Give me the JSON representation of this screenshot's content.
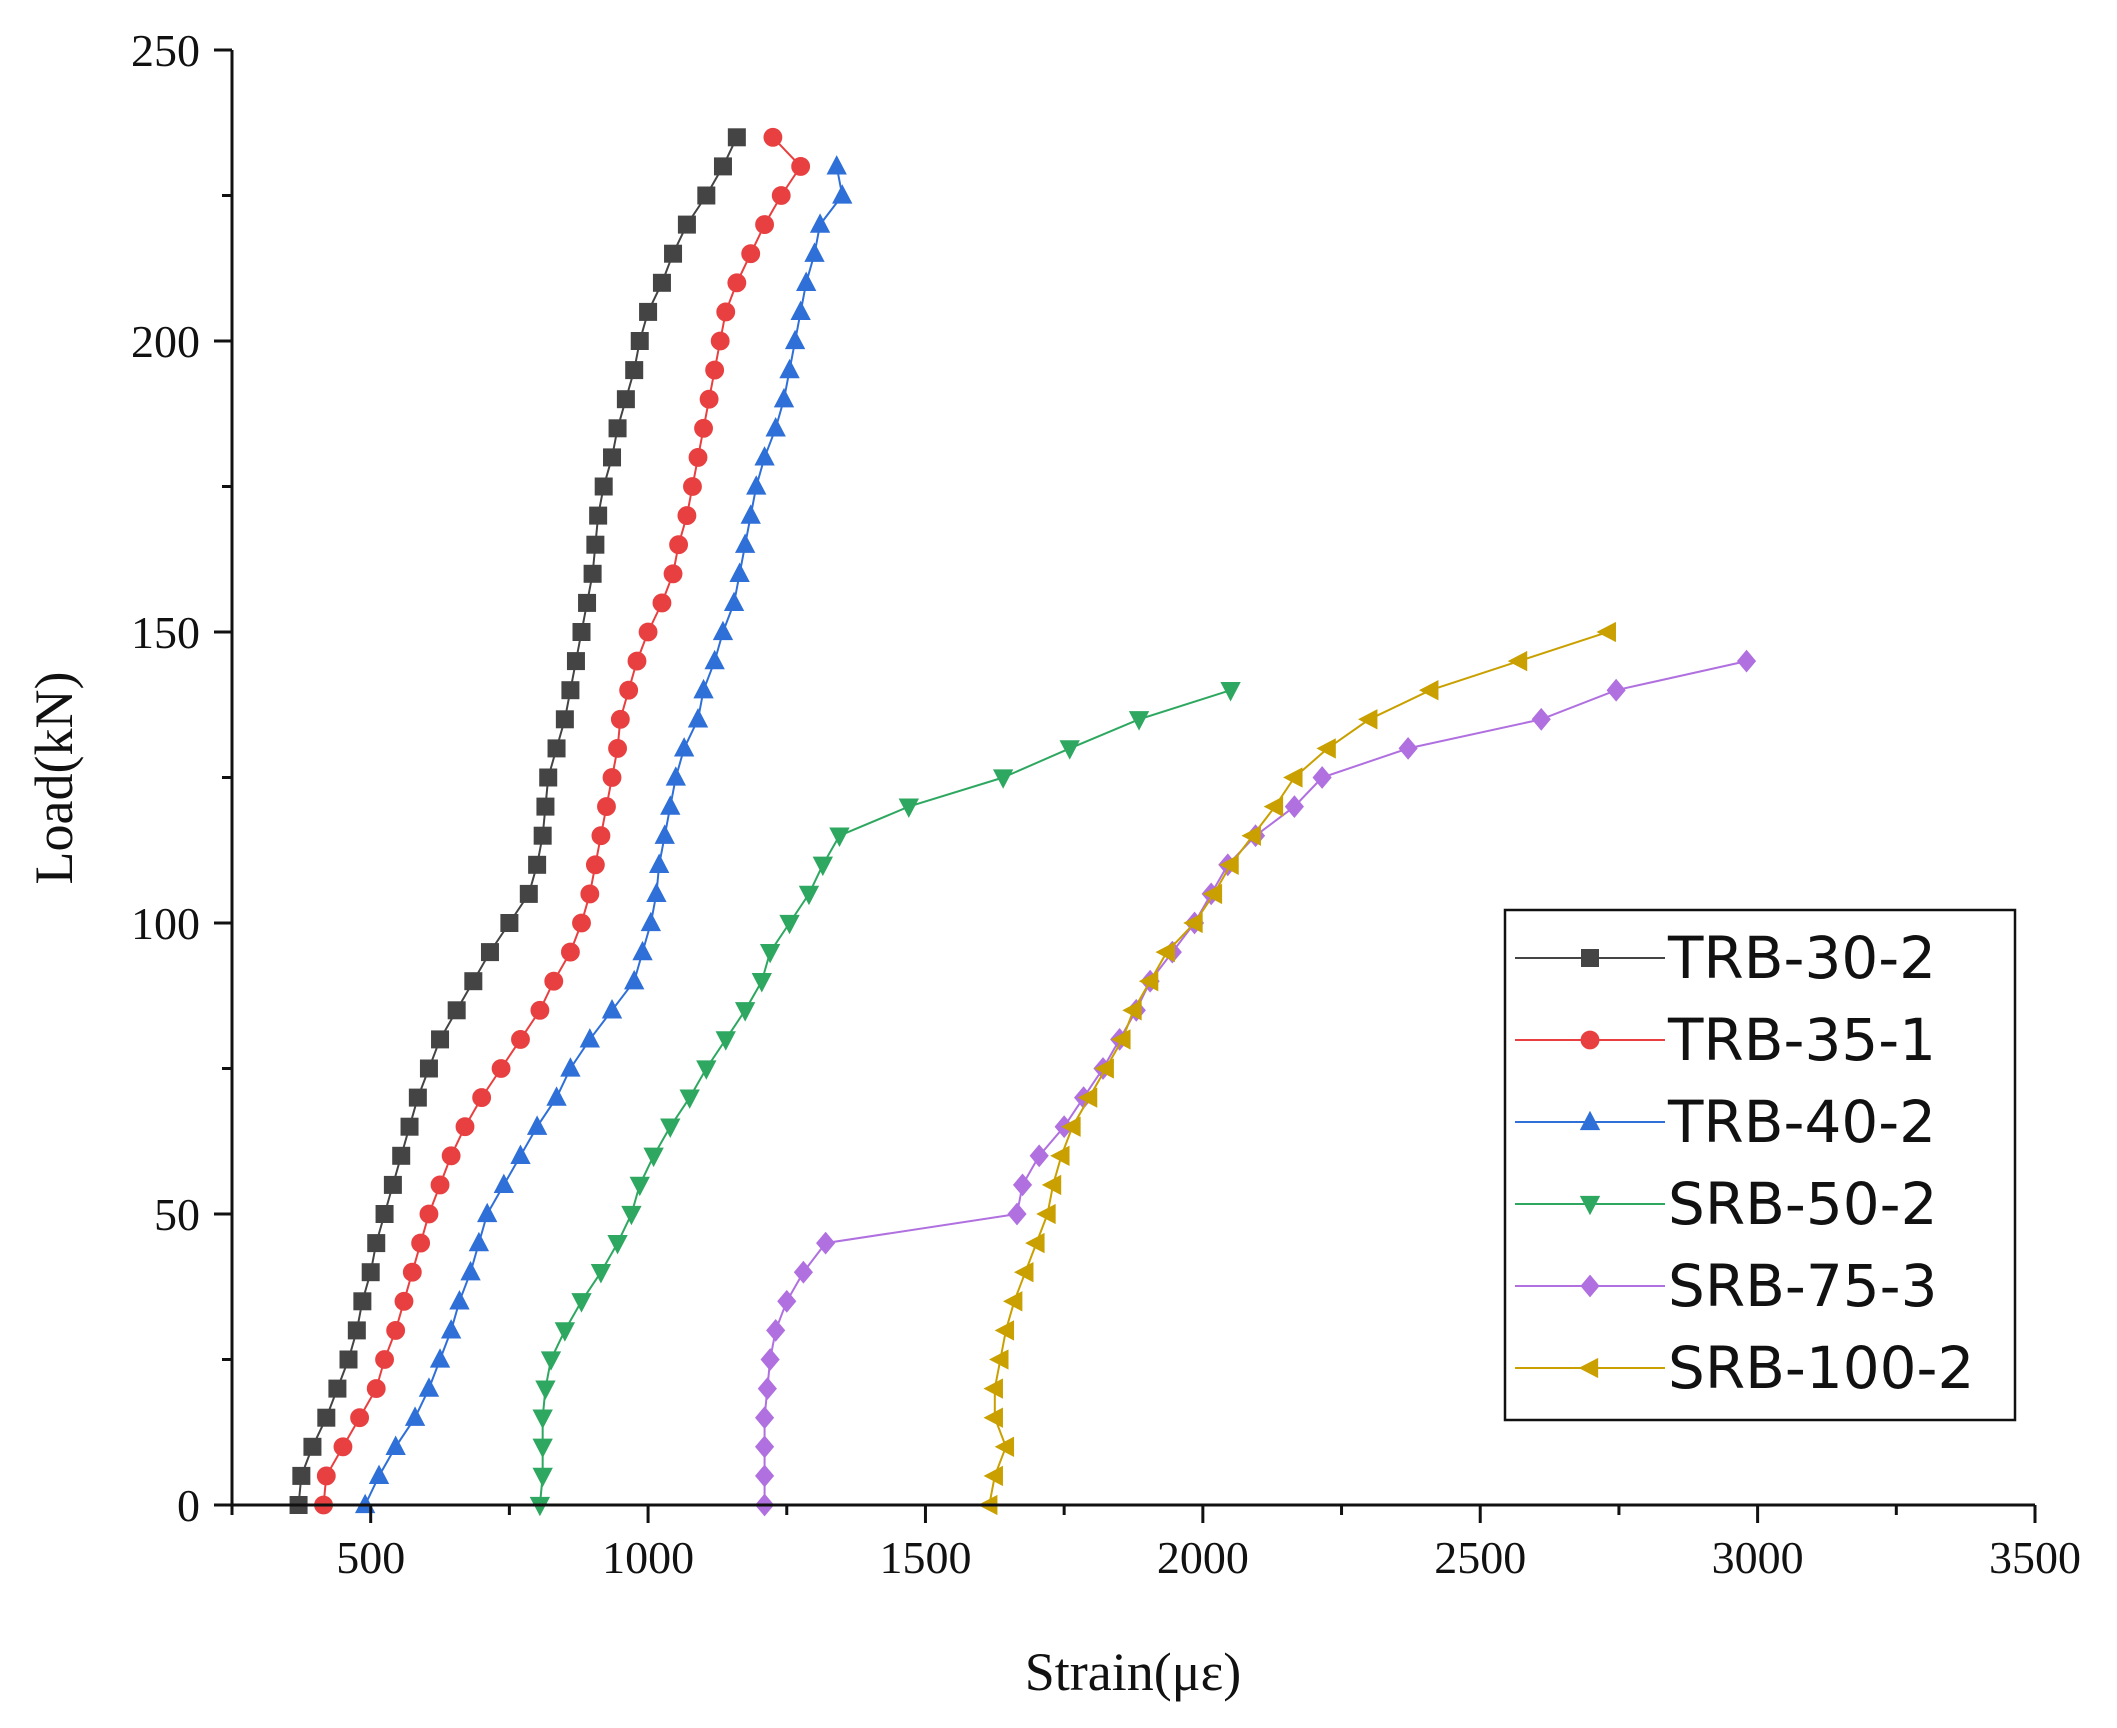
{
  "chart_data": {
    "type": "line",
    "title": "",
    "xlabel": "Strain(με)",
    "ylabel": "Load(kN)",
    "xlim": [
      250,
      3500
    ],
    "ylim": [
      0,
      250
    ],
    "xticks": [
      500,
      1000,
      1500,
      2000,
      2500,
      3000,
      3500
    ],
    "yticks": [
      0,
      50,
      100,
      150,
      200,
      250
    ],
    "grid": false,
    "legend_position": "lower-right",
    "series": [
      {
        "name": "TRB-30-2",
        "color": "#444444",
        "marker": "square",
        "points": [
          [
            370,
            0
          ],
          [
            375,
            5
          ],
          [
            395,
            10
          ],
          [
            420,
            15
          ],
          [
            440,
            20
          ],
          [
            460,
            25
          ],
          [
            475,
            30
          ],
          [
            485,
            35
          ],
          [
            500,
            40
          ],
          [
            510,
            45
          ],
          [
            525,
            50
          ],
          [
            540,
            55
          ],
          [
            555,
            60
          ],
          [
            570,
            65
          ],
          [
            585,
            70
          ],
          [
            605,
            75
          ],
          [
            625,
            80
          ],
          [
            655,
            85
          ],
          [
            685,
            90
          ],
          [
            715,
            95
          ],
          [
            750,
            100
          ],
          [
            785,
            105
          ],
          [
            800,
            110
          ],
          [
            810,
            115
          ],
          [
            815,
            120
          ],
          [
            820,
            125
          ],
          [
            835,
            130
          ],
          [
            850,
            135
          ],
          [
            860,
            140
          ],
          [
            870,
            145
          ],
          [
            880,
            150
          ],
          [
            890,
            155
          ],
          [
            900,
            160
          ],
          [
            905,
            165
          ],
          [
            910,
            170
          ],
          [
            920,
            175
          ],
          [
            935,
            180
          ],
          [
            945,
            185
          ],
          [
            960,
            190
          ],
          [
            975,
            195
          ],
          [
            985,
            200
          ],
          [
            1000,
            205
          ],
          [
            1025,
            210
          ],
          [
            1045,
            215
          ],
          [
            1070,
            220
          ],
          [
            1105,
            225
          ],
          [
            1135,
            230
          ],
          [
            1160,
            235
          ]
        ]
      },
      {
        "name": "TRB-35-1",
        "color": "#e84040",
        "marker": "circle",
        "points": [
          [
            415,
            0
          ],
          [
            420,
            5
          ],
          [
            450,
            10
          ],
          [
            480,
            15
          ],
          [
            510,
            20
          ],
          [
            525,
            25
          ],
          [
            545,
            30
          ],
          [
            560,
            35
          ],
          [
            575,
            40
          ],
          [
            590,
            45
          ],
          [
            605,
            50
          ],
          [
            625,
            55
          ],
          [
            645,
            60
          ],
          [
            670,
            65
          ],
          [
            700,
            70
          ],
          [
            735,
            75
          ],
          [
            770,
            80
          ],
          [
            805,
            85
          ],
          [
            830,
            90
          ],
          [
            860,
            95
          ],
          [
            880,
            100
          ],
          [
            895,
            105
          ],
          [
            905,
            110
          ],
          [
            915,
            115
          ],
          [
            925,
            120
          ],
          [
            935,
            125
          ],
          [
            945,
            130
          ],
          [
            950,
            135
          ],
          [
            965,
            140
          ],
          [
            980,
            145
          ],
          [
            1000,
            150
          ],
          [
            1025,
            155
          ],
          [
            1045,
            160
          ],
          [
            1055,
            165
          ],
          [
            1070,
            170
          ],
          [
            1080,
            175
          ],
          [
            1090,
            180
          ],
          [
            1100,
            185
          ],
          [
            1110,
            190
          ],
          [
            1120,
            195
          ],
          [
            1130,
            200
          ],
          [
            1140,
            205
          ],
          [
            1160,
            210
          ],
          [
            1185,
            215
          ],
          [
            1210,
            220
          ],
          [
            1240,
            225
          ],
          [
            1275,
            230
          ],
          [
            1225,
            235
          ]
        ]
      },
      {
        "name": "TRB-40-2",
        "color": "#2f6fd8",
        "marker": "triangle-up",
        "points": [
          [
            490,
            0
          ],
          [
            515,
            5
          ],
          [
            545,
            10
          ],
          [
            580,
            15
          ],
          [
            605,
            20
          ],
          [
            625,
            25
          ],
          [
            645,
            30
          ],
          [
            660,
            35
          ],
          [
            680,
            40
          ],
          [
            695,
            45
          ],
          [
            710,
            50
          ],
          [
            740,
            55
          ],
          [
            770,
            60
          ],
          [
            800,
            65
          ],
          [
            835,
            70
          ],
          [
            860,
            75
          ],
          [
            895,
            80
          ],
          [
            935,
            85
          ],
          [
            975,
            90
          ],
          [
            990,
            95
          ],
          [
            1005,
            100
          ],
          [
            1015,
            105
          ],
          [
            1020,
            110
          ],
          [
            1030,
            115
          ],
          [
            1040,
            120
          ],
          [
            1050,
            125
          ],
          [
            1065,
            130
          ],
          [
            1090,
            135
          ],
          [
            1100,
            140
          ],
          [
            1120,
            145
          ],
          [
            1135,
            150
          ],
          [
            1155,
            155
          ],
          [
            1165,
            160
          ],
          [
            1175,
            165
          ],
          [
            1185,
            170
          ],
          [
            1195,
            175
          ],
          [
            1210,
            180
          ],
          [
            1230,
            185
          ],
          [
            1245,
            190
          ],
          [
            1255,
            195
          ],
          [
            1265,
            200
          ],
          [
            1275,
            205
          ],
          [
            1285,
            210
          ],
          [
            1300,
            215
          ],
          [
            1310,
            220
          ],
          [
            1350,
            225
          ],
          [
            1340,
            230
          ]
        ]
      },
      {
        "name": "SRB-50-2",
        "color": "#2ea860",
        "marker": "triangle-down",
        "points": [
          [
            805,
            0
          ],
          [
            810,
            5
          ],
          [
            810,
            10
          ],
          [
            810,
            15
          ],
          [
            815,
            20
          ],
          [
            825,
            25
          ],
          [
            850,
            30
          ],
          [
            880,
            35
          ],
          [
            915,
            40
          ],
          [
            945,
            45
          ],
          [
            970,
            50
          ],
          [
            985,
            55
          ],
          [
            1010,
            60
          ],
          [
            1040,
            65
          ],
          [
            1075,
            70
          ],
          [
            1105,
            75
          ],
          [
            1140,
            80
          ],
          [
            1175,
            85
          ],
          [
            1205,
            90
          ],
          [
            1220,
            95
          ],
          [
            1255,
            100
          ],
          [
            1290,
            105
          ],
          [
            1315,
            110
          ],
          [
            1345,
            115
          ],
          [
            1470,
            120
          ],
          [
            1640,
            125
          ],
          [
            1760,
            130
          ],
          [
            1885,
            135
          ],
          [
            2050,
            140
          ]
        ]
      },
      {
        "name": "SRB-75-3",
        "color": "#b070e0",
        "marker": "diamond",
        "points": [
          [
            1210,
            0
          ],
          [
            1210,
            5
          ],
          [
            1210,
            10
          ],
          [
            1210,
            15
          ],
          [
            1215,
            20
          ],
          [
            1220,
            25
          ],
          [
            1230,
            30
          ],
          [
            1250,
            35
          ],
          [
            1280,
            40
          ],
          [
            1320,
            45
          ],
          [
            1665,
            50
          ],
          [
            1675,
            55
          ],
          [
            1705,
            60
          ],
          [
            1750,
            65
          ],
          [
            1785,
            70
          ],
          [
            1820,
            75
          ],
          [
            1850,
            80
          ],
          [
            1880,
            85
          ],
          [
            1905,
            90
          ],
          [
            1945,
            95
          ],
          [
            1985,
            100
          ],
          [
            2015,
            105
          ],
          [
            2045,
            110
          ],
          [
            2095,
            115
          ],
          [
            2165,
            120
          ],
          [
            2215,
            125
          ],
          [
            2370,
            130
          ],
          [
            2610,
            135
          ],
          [
            2745,
            140
          ],
          [
            2980,
            145
          ]
        ]
      },
      {
        "name": "SRB-100-2",
        "color": "#c9a000",
        "marker": "triangle-left",
        "points": [
          [
            1615,
            0
          ],
          [
            1625,
            5
          ],
          [
            1645,
            10
          ],
          [
            1625,
            15
          ],
          [
            1625,
            20
          ],
          [
            1635,
            25
          ],
          [
            1645,
            30
          ],
          [
            1660,
            35
          ],
          [
            1680,
            40
          ],
          [
            1700,
            45
          ],
          [
            1720,
            50
          ],
          [
            1730,
            55
          ],
          [
            1745,
            60
          ],
          [
            1765,
            65
          ],
          [
            1795,
            70
          ],
          [
            1825,
            75
          ],
          [
            1855,
            80
          ],
          [
            1875,
            85
          ],
          [
            1905,
            90
          ],
          [
            1935,
            95
          ],
          [
            1985,
            100
          ],
          [
            2020,
            105
          ],
          [
            2050,
            110
          ],
          [
            2090,
            115
          ],
          [
            2130,
            120
          ],
          [
            2165,
            125
          ],
          [
            2225,
            130
          ],
          [
            2300,
            135
          ],
          [
            2410,
            140
          ],
          [
            2570,
            145
          ],
          [
            2730,
            150
          ]
        ]
      }
    ]
  }
}
